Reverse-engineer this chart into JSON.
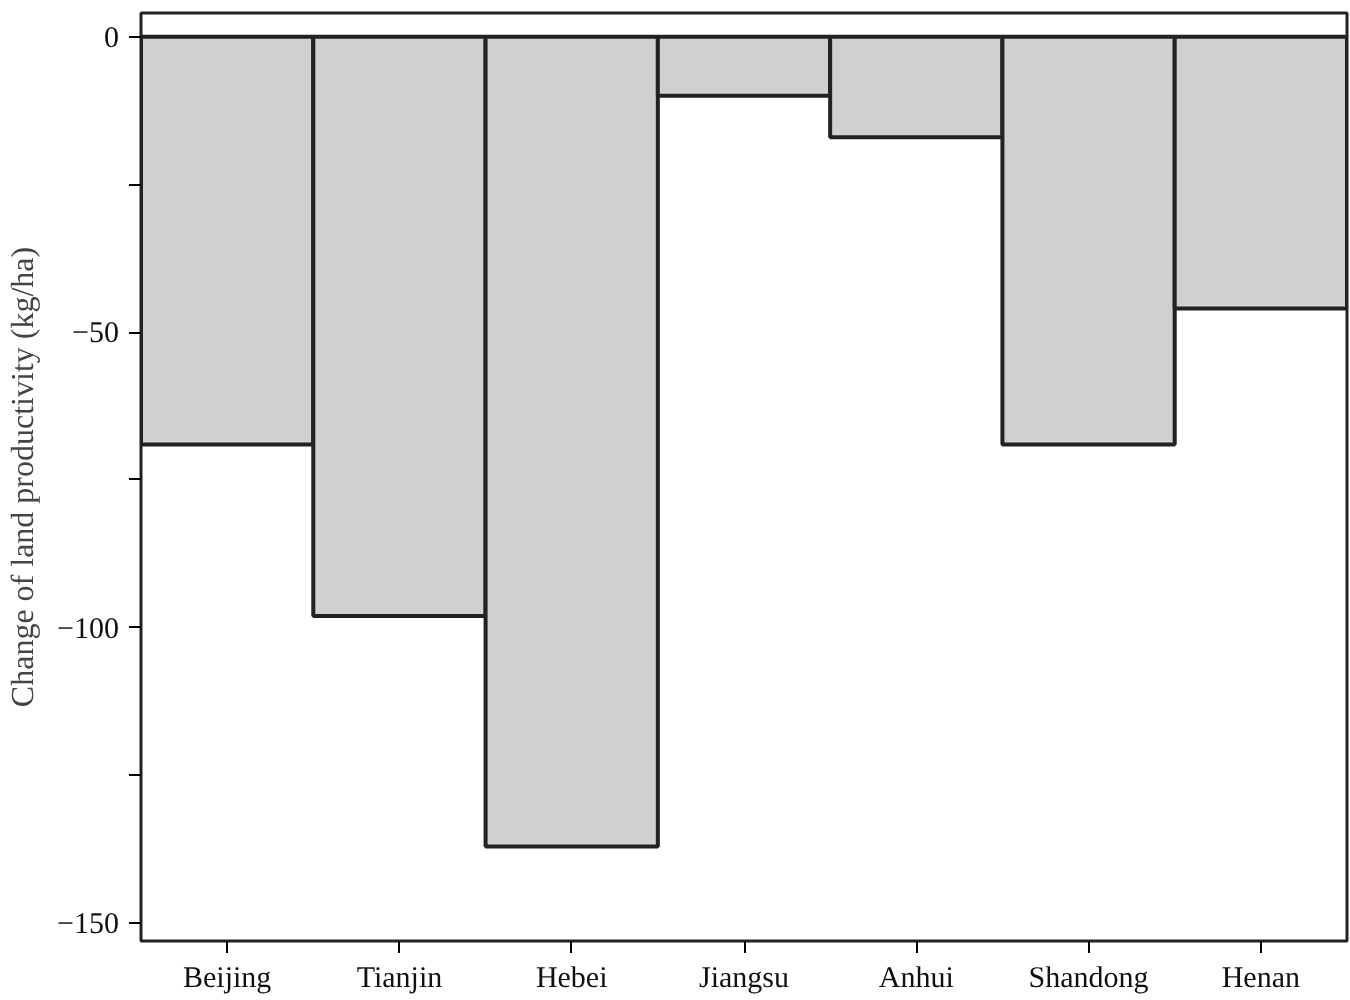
{
  "chart_data": {
    "type": "bar",
    "ylabel": "Change of land productivity (kg/ha)",
    "categories": [
      "Beijing",
      "Tianjin",
      "Hebei",
      "Jiangsu",
      "Anhui",
      "Shandong",
      "Henan"
    ],
    "values": [
      -69,
      -98,
      -137,
      -10,
      -17,
      -69,
      -46
    ],
    "color": "#d0d0d0",
    "ylim": [
      -153,
      4
    ],
    "yticks": [
      0,
      {
        "value": -25,
        "label": null
      },
      -50,
      {
        "value": -75,
        "label": null
      },
      -100,
      {
        "value": -125,
        "label": null
      },
      -150
    ],
    "grid": false
  }
}
